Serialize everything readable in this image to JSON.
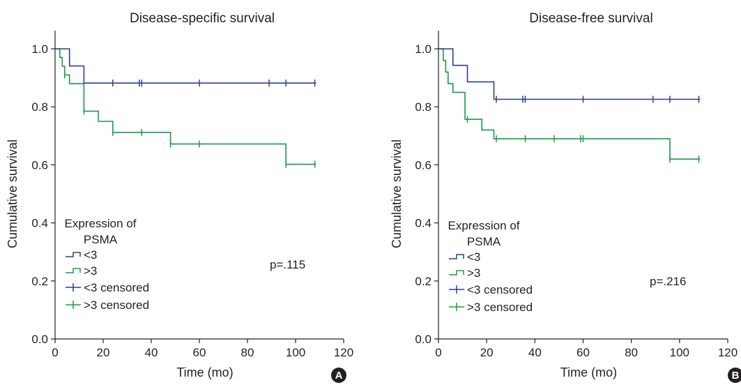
{
  "colors": {
    "low": "#2c3f8f",
    "high": "#1b9a4a",
    "axis": "#231f20",
    "badge": "#231f20"
  },
  "chart_data": [
    {
      "type": "line",
      "step": true,
      "panel": "A",
      "title": "Disease-specific survival",
      "xlabel": "Time (mo)",
      "ylabel": "Cumulative survival",
      "xlim": [
        0,
        120
      ],
      "ylim": [
        0,
        1
      ],
      "xticks": [
        0,
        20,
        40,
        60,
        80,
        100,
        120
      ],
      "yticks": [
        0.0,
        0.2,
        0.4,
        0.6,
        0.8,
        1.0
      ],
      "xtick_labels": [
        "0",
        "20",
        "40",
        "60",
        "80",
        "100",
        "120"
      ],
      "ytick_labels": [
        "0.0",
        "0.2",
        "0.4",
        "0.6",
        "0.8",
        "1.0"
      ],
      "legend_title": [
        "Expression of",
        "PSMA"
      ],
      "legend": [
        "<3",
        ">3",
        "<3 censored",
        ">3 censored"
      ],
      "p_value": "p=.115",
      "series": [
        {
          "name": "<3",
          "steps": [
            [
              0,
              1.0
            ],
            [
              6,
              0.941
            ],
            [
              12,
              0.882
            ],
            [
              108.5,
              0.882
            ]
          ],
          "censored": [
            [
              24,
              0.882
            ],
            [
              35,
              0.882
            ],
            [
              36,
              0.882
            ],
            [
              60,
              0.882
            ],
            [
              89,
              0.882
            ],
            [
              96,
              0.882
            ],
            [
              108,
              0.882
            ]
          ]
        },
        {
          "name": ">3",
          "steps": [
            [
              0,
              1.0
            ],
            [
              2,
              0.97
            ],
            [
              3,
              0.94
            ],
            [
              4,
              0.91
            ],
            [
              6,
              0.88
            ],
            [
              12,
              0.785
            ],
            [
              18,
              0.75
            ],
            [
              24,
              0.712
            ],
            [
              48,
              0.672
            ],
            [
              96,
              0.602
            ],
            [
              108.5,
              0.602
            ]
          ],
          "censored": [
            [
              4,
              0.91
            ],
            [
              12,
              0.785
            ],
            [
              24,
              0.712
            ],
            [
              36,
              0.712
            ],
            [
              48,
              0.672
            ],
            [
              60,
              0.672
            ],
            [
              96,
              0.602
            ],
            [
              108,
              0.602
            ]
          ]
        }
      ]
    },
    {
      "type": "line",
      "step": true,
      "panel": "B",
      "title": "Disease-free survival",
      "xlabel": "Time (mo)",
      "ylabel": "Cumulative survival",
      "xlim": [
        0,
        120
      ],
      "ylim": [
        0,
        1
      ],
      "xticks": [
        0,
        20,
        40,
        60,
        80,
        100,
        120
      ],
      "yticks": [
        0.0,
        0.2,
        0.4,
        0.6,
        0.8,
        1.0
      ],
      "xtick_labels": [
        "0",
        "20",
        "40",
        "60",
        "80",
        "100",
        "120"
      ],
      "ytick_labels": [
        "0.0",
        "0.2",
        "0.4",
        "0.6",
        "0.8",
        "1.0"
      ],
      "legend_title": [
        "Expression of",
        "PSMA"
      ],
      "legend": [
        "<3",
        ">3",
        "<3 censored",
        ">3 censored"
      ],
      "p_value": "p=.216",
      "series": [
        {
          "name": "<3",
          "steps": [
            [
              0,
              1.0
            ],
            [
              6,
              0.943
            ],
            [
              12,
              0.886
            ],
            [
              23,
              0.826
            ],
            [
              108.5,
              0.826
            ]
          ],
          "censored": [
            [
              24,
              0.826
            ],
            [
              35,
              0.826
            ],
            [
              36,
              0.826
            ],
            [
              60,
              0.826
            ],
            [
              89,
              0.826
            ],
            [
              96,
              0.826
            ],
            [
              108,
              0.826
            ]
          ]
        },
        {
          "name": ">3",
          "steps": [
            [
              0,
              1.0
            ],
            [
              2,
              0.96
            ],
            [
              3,
              0.92
            ],
            [
              4,
              0.88
            ],
            [
              6,
              0.85
            ],
            [
              11,
              0.757
            ],
            [
              18,
              0.72
            ],
            [
              23,
              0.69
            ],
            [
              96,
              0.62
            ],
            [
              108.5,
              0.62
            ]
          ],
          "censored": [
            [
              12,
              0.757
            ],
            [
              24,
              0.69
            ],
            [
              36,
              0.69
            ],
            [
              48,
              0.69
            ],
            [
              59,
              0.69
            ],
            [
              60,
              0.69
            ],
            [
              96,
              0.62
            ],
            [
              108,
              0.62
            ]
          ]
        }
      ]
    }
  ]
}
